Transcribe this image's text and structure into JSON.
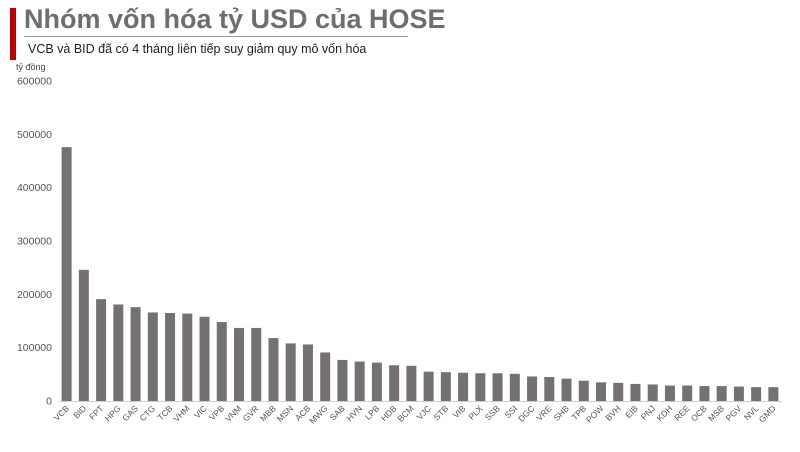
{
  "header": {
    "title": "Nhóm vốn hóa tỷ USD của HOSE",
    "subtitle": "VCB và BID đã có 4 tháng liên tiếp suy giảm quy mô vốn hóa",
    "accent_color": "#c00000"
  },
  "chart_data": {
    "type": "bar",
    "ylabel": "tỷ đồng",
    "ylim": [
      0,
      600000
    ],
    "yticks": [
      0,
      100000,
      200000,
      300000,
      400000,
      500000,
      600000
    ],
    "grid": false,
    "bar_color": "#767171",
    "categories": [
      "VCB",
      "BID",
      "FPT",
      "HPG",
      "GAS",
      "CTG",
      "TCB",
      "VHM",
      "VIC",
      "VPB",
      "VNM",
      "GVR",
      "MBB",
      "MSN",
      "ACB",
      "MWG",
      "SAB",
      "HVN",
      "LPB",
      "HDB",
      "BCM",
      "VJC",
      "STB",
      "VIB",
      "PLX",
      "SSB",
      "SSI",
      "DGC",
      "VRE",
      "SHB",
      "TPB",
      "POW",
      "BVH",
      "EIB",
      "PNJ",
      "KDH",
      "REE",
      "OCB",
      "MSB",
      "PGV",
      "NVL",
      "GMD"
    ],
    "values": [
      476000,
      246000,
      191000,
      181000,
      176000,
      166000,
      165000,
      164000,
      158000,
      148000,
      137000,
      137000,
      118000,
      108000,
      106000,
      91000,
      77000,
      74000,
      72000,
      67000,
      66000,
      55000,
      54000,
      53000,
      52000,
      52000,
      51000,
      46000,
      45000,
      42000,
      38000,
      35000,
      34000,
      32000,
      31000,
      29000,
      29000,
      28000,
      28000,
      27000,
      26000,
      26000
    ]
  }
}
